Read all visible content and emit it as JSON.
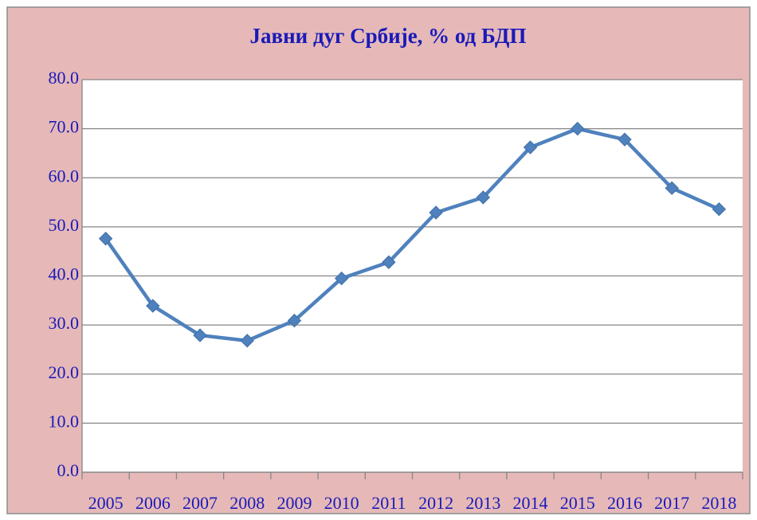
{
  "chart_data": {
    "type": "line",
    "title": "Јавни дуг Србије, % од БДП",
    "categories": [
      "2005",
      "2006",
      "2007",
      "2008",
      "2009",
      "2010",
      "2011",
      "2012",
      "2013",
      "2014",
      "2015",
      "2016",
      "2017",
      "2018"
    ],
    "series": [
      {
        "name": "Јавни дуг",
        "color": "#4f81bd",
        "values": [
          47.6,
          33.9,
          27.9,
          26.8,
          30.9,
          39.5,
          42.8,
          52.9,
          56.0,
          66.2,
          70.0,
          67.8,
          57.9,
          53.6
        ]
      }
    ],
    "ylim": [
      0,
      80
    ],
    "yticks": [
      {
        "value": 0,
        "label": "0.0"
      },
      {
        "value": 10,
        "label": "10.0"
      },
      {
        "value": 20,
        "label": "20.0"
      },
      {
        "value": 30,
        "label": "30.0"
      },
      {
        "value": 40,
        "label": "40.0"
      },
      {
        "value": 50,
        "label": "50.0"
      },
      {
        "value": 60,
        "label": "60.0"
      },
      {
        "value": 70,
        "label": "70.0"
      },
      {
        "value": 80,
        "label": "80.0"
      }
    ],
    "grid": true
  }
}
